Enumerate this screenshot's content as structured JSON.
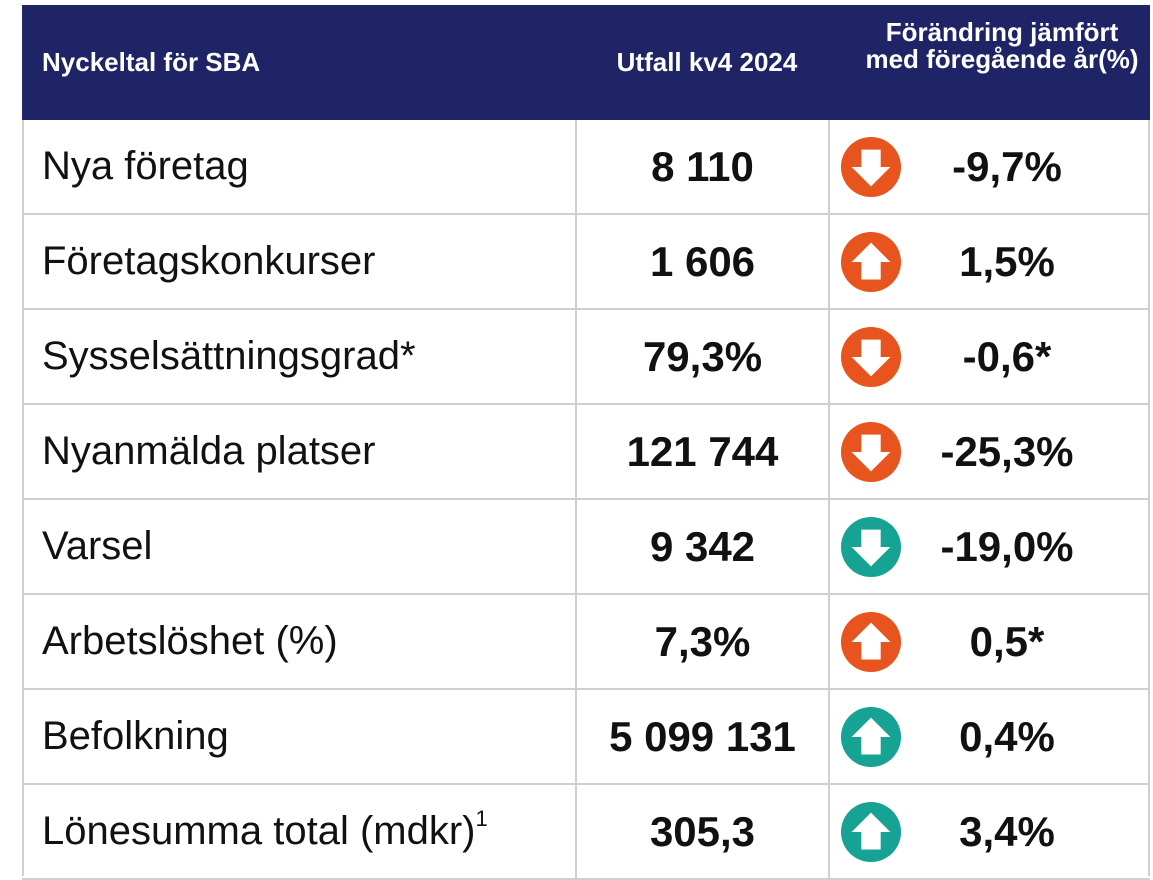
{
  "table": {
    "header": [
      "Nyckeltal för SBA",
      "Utfall kv4 2024",
      "Förändring jämfört med föregående år(%)"
    ],
    "rows": [
      [
        "Nya företag",
        "8 110",
        "-9,7%"
      ],
      [
        "Företagskonkurser",
        "1 606",
        "1,5%"
      ],
      [
        "Sysselsättningsgrad*",
        "79,3%",
        "-0,6*"
      ],
      [
        "Nyanmälda platser",
        "121 744",
        "-25,3%"
      ],
      [
        "Varsel",
        "9 342",
        "-19,0%"
      ],
      [
        "Arbetslöshet (%)",
        "7,3%",
        "0,5*"
      ],
      [
        "Befolkning",
        "5 099 131",
        "0,4%"
      ],
      [
        "Lönesumma total (mdkr)",
        "305,3",
        "3,4%"
      ]
    ],
    "footnote_mark": "1"
  }
}
